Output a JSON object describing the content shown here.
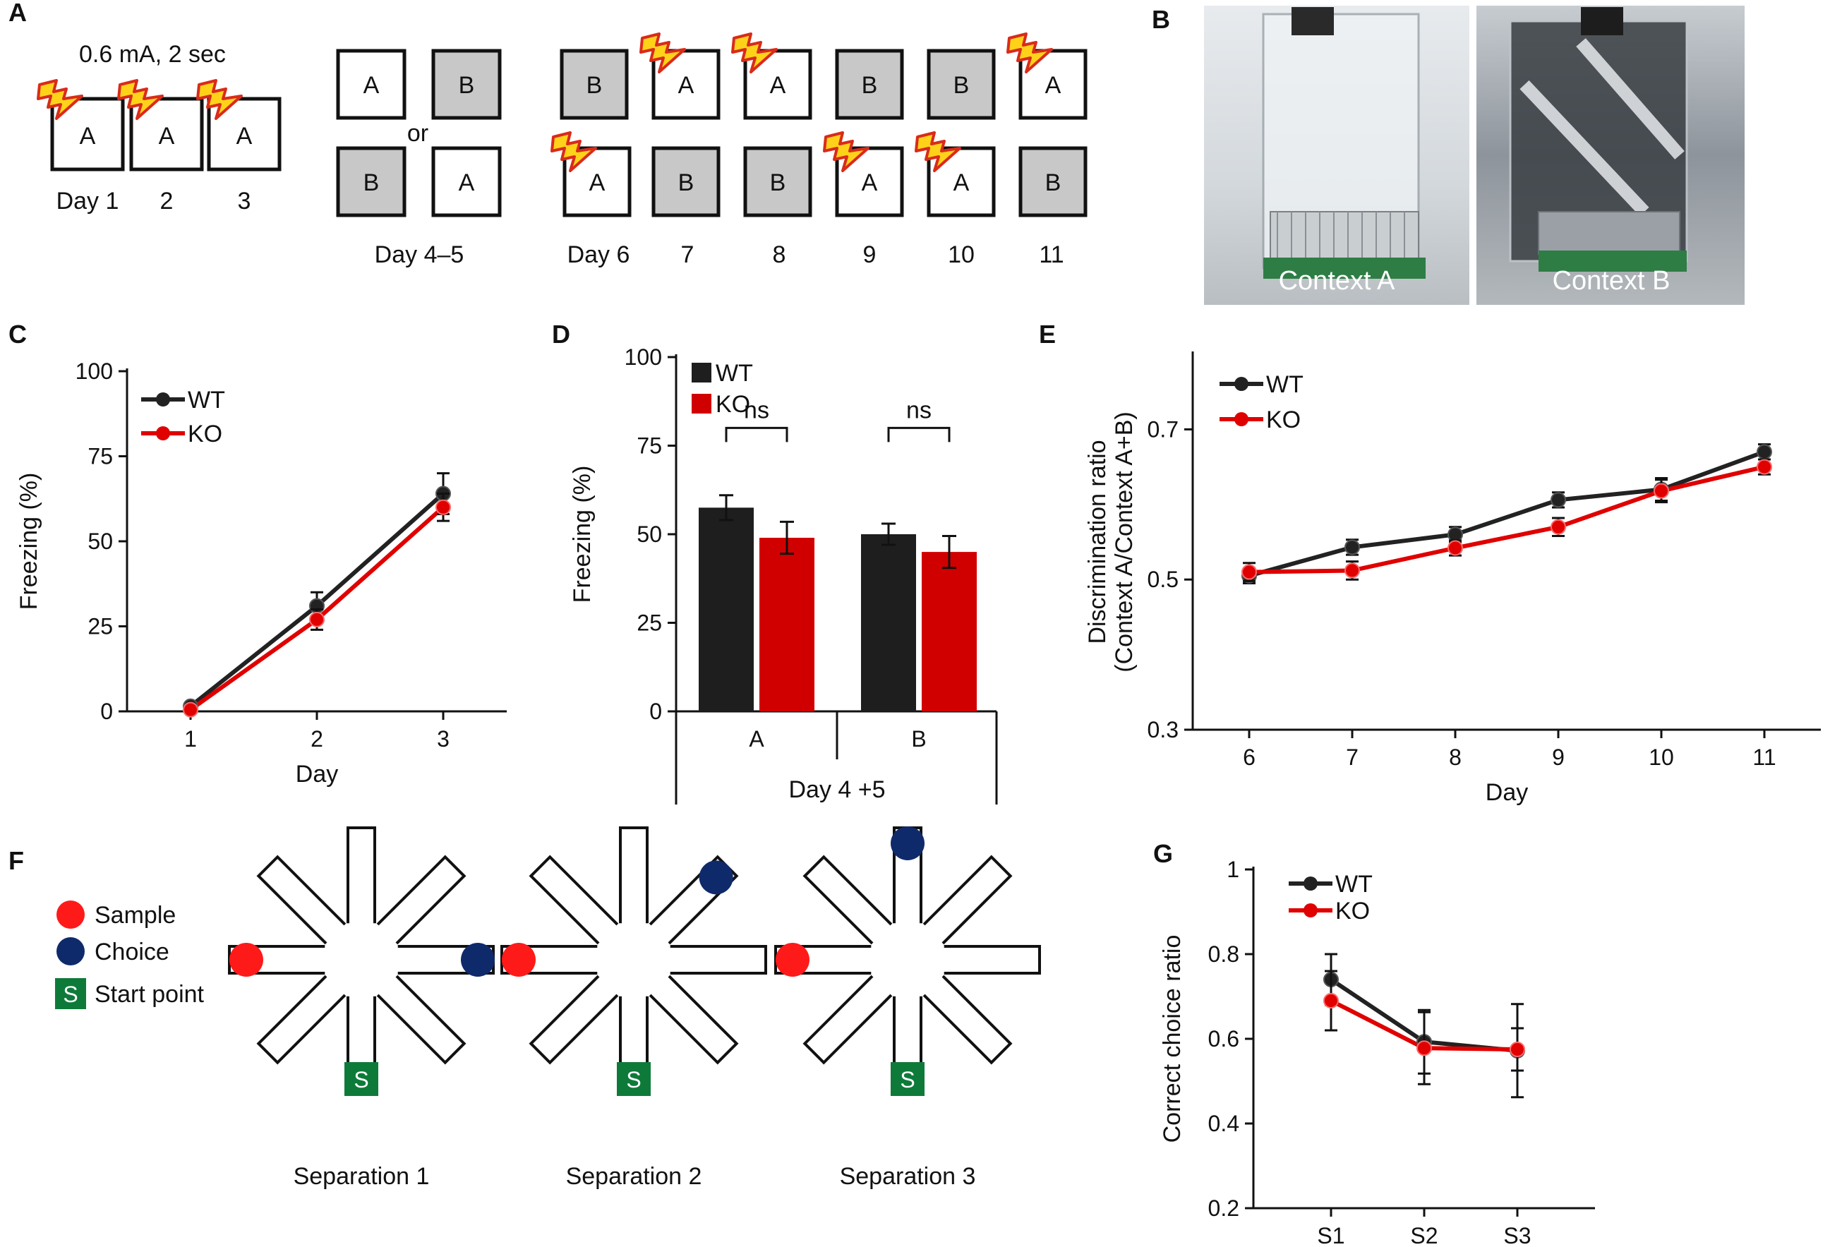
{
  "panels": {
    "A": {
      "letter": "A",
      "shock_label": "0.6 mA, 2 sec",
      "training_days": [
        "Day 1",
        "2",
        "3"
      ],
      "training_boxes": [
        "A",
        "A",
        "A"
      ],
      "test_boxes_top": [
        "A",
        "B"
      ],
      "test_boxes_bottom": [
        "B",
        "A"
      ],
      "or_label": "or",
      "test_day_label": "Day 4–5",
      "disc_top": [
        "B",
        "A",
        "A",
        "B",
        "B",
        "A"
      ],
      "disc_bottom": [
        "A",
        "B",
        "B",
        "A",
        "A",
        "B"
      ],
      "disc_days": [
        "Day 6",
        "7",
        "8",
        "9",
        "10",
        "11"
      ]
    },
    "B": {
      "letter": "B",
      "photo_left_label": "Context A",
      "photo_right_label": "Context B"
    },
    "C": {
      "letter": "C"
    },
    "D": {
      "letter": "D"
    },
    "E": {
      "letter": "E"
    },
    "F": {
      "letter": "F",
      "legend": {
        "sample": "Sample",
        "choice": "Choice",
        "start_symbol": "S",
        "start": "Start point"
      },
      "mazes": [
        "Separation 1",
        "Separation 2",
        "Separation 3"
      ],
      "start_symbol": "S"
    },
    "G": {
      "letter": "G"
    }
  },
  "colors": {
    "wt": "#222222",
    "ko": "#e00000",
    "bar_wt": "#1e1e1e",
    "bar_ko": "#d10000",
    "sample": "#ff1a1a",
    "choice": "#0f2a6b",
    "start": "#0e7a3a",
    "gray_box": "#c8c8c8",
    "bolt": "#ffd21a",
    "bolt_edge": "#d92b1a"
  },
  "chart_data": [
    {
      "id": "C",
      "type": "line",
      "ylabel": "Freezing (%)",
      "xlabel": "Day",
      "categories": [
        "1",
        "2",
        "3"
      ],
      "yticks": [
        "0",
        "25",
        "50",
        "75",
        "100"
      ],
      "ylim": [
        0,
        100
      ],
      "series": [
        {
          "name": "WT",
          "values": [
            1.5,
            31,
            64
          ],
          "err": [
            1,
            4,
            6
          ]
        },
        {
          "name": "KO",
          "values": [
            0.5,
            27,
            60
          ],
          "err": [
            0.5,
            3,
            4
          ]
        }
      ]
    },
    {
      "id": "D",
      "type": "bar",
      "ylabel": "Freezing (%)",
      "xlabel": "Day 4 +5",
      "categories": [
        "A",
        "B"
      ],
      "yticks": [
        "0",
        "25",
        "50",
        "75",
        "100"
      ],
      "ylim": [
        0,
        100
      ],
      "significance": [
        "ns",
        "ns"
      ],
      "series": [
        {
          "name": "WT",
          "values": [
            57.5,
            50
          ],
          "err": [
            3.5,
            3
          ]
        },
        {
          "name": "KO",
          "values": [
            49,
            45
          ],
          "err": [
            4.5,
            4.5
          ]
        }
      ]
    },
    {
      "id": "E",
      "type": "line",
      "ylabel": "Discrimination ratio",
      "ylabel2": "(Context A/Context A+B)",
      "xlabel": "Day",
      "categories": [
        "6",
        "7",
        "8",
        "9",
        "10",
        "11"
      ],
      "yticks": [
        "0.3",
        "0.5",
        "0.7"
      ],
      "ylim": [
        0.3,
        0.8
      ],
      "series": [
        {
          "name": "WT",
          "values": [
            0.505,
            0.543,
            0.56,
            0.606,
            0.62,
            0.67
          ],
          "err": [
            0.01,
            0.01,
            0.01,
            0.01,
            0.015,
            0.01
          ]
        },
        {
          "name": "KO",
          "values": [
            0.51,
            0.512,
            0.542,
            0.57,
            0.618,
            0.65
          ],
          "err": [
            0.012,
            0.012,
            0.01,
            0.012,
            0.015,
            0.01
          ]
        }
      ]
    },
    {
      "id": "G",
      "type": "line",
      "ylabel": "Correct choice ratio",
      "xlabel": "",
      "categories": [
        "S1",
        "S2",
        "S3"
      ],
      "yticks": [
        "0.2",
        "0.4",
        "0.6",
        "0.8",
        "1"
      ],
      "ylim": [
        0.2,
        1
      ],
      "series": [
        {
          "name": "WT",
          "values": [
            0.74,
            0.593,
            0.572
          ],
          "err": [
            0.06,
            0.075,
            0.11
          ]
        },
        {
          "name": "KO",
          "values": [
            0.69,
            0.578,
            0.575
          ],
          "err": [
            0.07,
            0.085,
            0.05
          ]
        }
      ]
    }
  ]
}
